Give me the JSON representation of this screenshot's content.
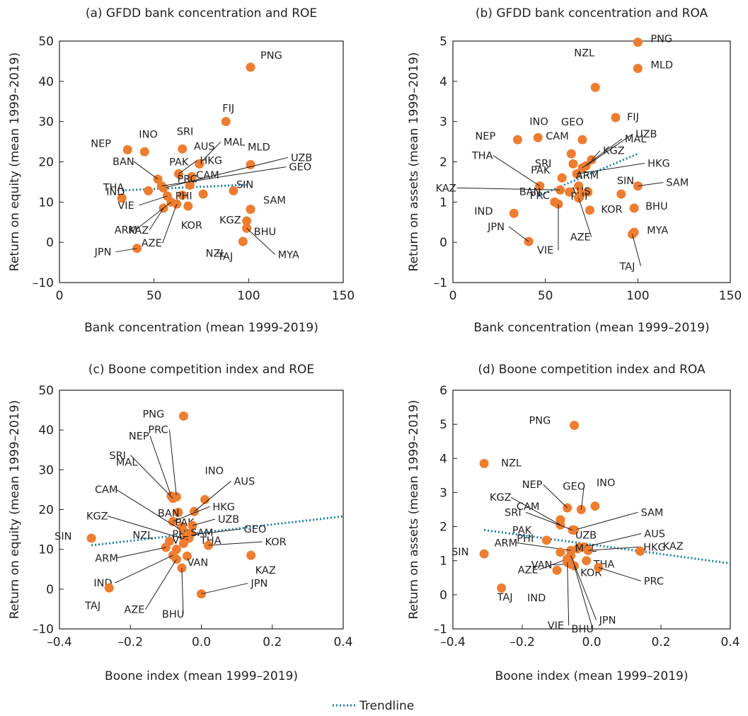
{
  "legend": {
    "label": "Trendline",
    "color": "#1b7fa6"
  },
  "colors": {
    "point": "#ee7d30",
    "trend": "#1b7fa6",
    "text": "#231f20"
  },
  "chart_data": [
    {
      "type": "scatter",
      "title": "(a) GFDD bank concentration and ROE",
      "xlabel": "Bank concentration (mean 1999-2019)",
      "ylabel": "Return on equity (mean 1999–2019)",
      "xlim": [
        0,
        150
      ],
      "ylim": [
        -10,
        50
      ],
      "xticks": [
        0,
        50,
        100,
        150
      ],
      "yticks": [
        -10,
        0,
        10,
        20,
        30,
        40,
        50
      ],
      "xtick_labels": [
        "0",
        "50",
        "100",
        "150"
      ],
      "ytick_labels": [
        "–10",
        "0",
        "10",
        "20",
        "30",
        "40",
        "50"
      ],
      "trendline": {
        "x": [
          33,
          99
        ],
        "y": [
          12.9,
          14.3
        ]
      },
      "points": [
        {
          "label": "PNG",
          "x": 101,
          "y": 43.5
        },
        {
          "label": "FIJ",
          "x": 88,
          "y": 30
        },
        {
          "label": "SRI",
          "x": 65,
          "y": 23.2
        },
        {
          "label": "INO",
          "x": 45,
          "y": 22.5
        },
        {
          "label": "NEP",
          "x": 36,
          "y": 23
        },
        {
          "label": "MAL",
          "x": 74,
          "y": 19.5
        },
        {
          "label": "AUS",
          "x": 74,
          "y": 19.5
        },
        {
          "label": "MLD",
          "x": 101,
          "y": 19.3
        },
        {
          "label": "HKG",
          "x": 63,
          "y": 17
        },
        {
          "label": "BAN",
          "x": 52,
          "y": 15.7
        },
        {
          "label": "PAK",
          "x": 70,
          "y": 16.3
        },
        {
          "label": "PRC",
          "x": 69,
          "y": 14.2
        },
        {
          "label": "UZB",
          "x": 55,
          "y": 13.5
        },
        {
          "label": "GEO",
          "x": 54,
          "y": 14
        },
        {
          "label": "THA",
          "x": 47,
          "y": 12.8
        },
        {
          "label": "SIN",
          "x": 92,
          "y": 12.8
        },
        {
          "label": "IND",
          "x": 33,
          "y": 11
        },
        {
          "label": "VIE",
          "x": 57,
          "y": 11.5
        },
        {
          "label": "CAM",
          "x": 76,
          "y": 12
        },
        {
          "label": "PHI",
          "x": 65,
          "y": 11.7
        },
        {
          "label": "KGZ",
          "x": 101,
          "y": 8.2
        },
        {
          "label": "SAM",
          "x": 101,
          "y": 8.2
        },
        {
          "label": "KAZ",
          "x": 55,
          "y": 8.5
        },
        {
          "label": "KOR",
          "x": 68,
          "y": 9
        },
        {
          "label": "ARM",
          "x": 59,
          "y": 10
        },
        {
          "label": "BHU",
          "x": 99,
          "y": 5.3
        },
        {
          "label": "NZL",
          "x": 99,
          "y": 3.5
        },
        {
          "label": "AZE",
          "x": 62,
          "y": 9.5
        },
        {
          "label": "MYA",
          "x": 99,
          "y": 3.5
        },
        {
          "label": "TAJ",
          "x": 97,
          "y": 0.2
        },
        {
          "label": "JPN",
          "x": 41,
          "y": -1.5
        }
      ]
    },
    {
      "type": "scatter",
      "title": "(b) GFDD bank concentration  and ROA",
      "xlabel": "Bank concentration (mean 1999–2019)",
      "ylabel": "Return on assets (mean 1999–2019)",
      "xlim": [
        0,
        150
      ],
      "ylim": [
        -1,
        5
      ],
      "xticks": [
        0,
        50,
        100,
        150
      ],
      "yticks": [
        -1,
        0,
        1,
        2,
        3,
        4,
        5
      ],
      "xtick_labels": [
        "0",
        "50",
        "100",
        "150"
      ],
      "ytick_labels": [
        "–1",
        "0",
        "1",
        "2",
        "3",
        "4",
        "5"
      ],
      "trendline": {
        "x": [
          46,
          100
        ],
        "y": [
          1.15,
          2.2
        ]
      },
      "points": [
        {
          "label": "PNG",
          "x": 100,
          "y": 4.97
        },
        {
          "label": "MLD",
          "x": 100,
          "y": 4.32
        },
        {
          "label": "NZL",
          "x": 77,
          "y": 3.85
        },
        {
          "label": "FIJ",
          "x": 88,
          "y": 3.1
        },
        {
          "label": "GEO",
          "x": 70,
          "y": 2.55
        },
        {
          "label": "INO",
          "x": 46,
          "y": 2.6
        },
        {
          "label": "NEP",
          "x": 35,
          "y": 2.55
        },
        {
          "label": "CAM",
          "x": 64,
          "y": 2.2
        },
        {
          "label": "KGZ",
          "x": 75,
          "y": 2.05
        },
        {
          "label": "UZB",
          "x": 72,
          "y": 1.9
        },
        {
          "label": "SRI",
          "x": 65,
          "y": 1.95
        },
        {
          "label": "MAL",
          "x": 70,
          "y": 1.85
        },
        {
          "label": "THA",
          "x": 47,
          "y": 1.4
        },
        {
          "label": "PAK",
          "x": 59,
          "y": 1.6
        },
        {
          "label": "HKG",
          "x": 67,
          "y": 1.7
        },
        {
          "label": "ARM",
          "x": 68,
          "y": 1.4
        },
        {
          "label": "SAM",
          "x": 100,
          "y": 1.4
        },
        {
          "label": "KAZ",
          "x": 58,
          "y": 1.3
        },
        {
          "label": "AUS",
          "x": 73,
          "y": 1.25
        },
        {
          "label": "SIN",
          "x": 91,
          "y": 1.2
        },
        {
          "label": "BAN",
          "x": 55,
          "y": 1.0
        },
        {
          "label": "PRC",
          "x": 63,
          "y": 1.25
        },
        {
          "label": "PHI",
          "x": 69,
          "y": 1.2
        },
        {
          "label": "KOR",
          "x": 74,
          "y": 0.8
        },
        {
          "label": "BHU",
          "x": 98,
          "y": 0.85
        },
        {
          "label": "IND",
          "x": 33,
          "y": 0.72
        },
        {
          "label": "VIE",
          "x": 57,
          "y": 0.95
        },
        {
          "label": "AZE",
          "x": 68,
          "y": 1.1
        },
        {
          "label": "MYA",
          "x": 98,
          "y": 0.25
        },
        {
          "label": "TAJ",
          "x": 97,
          "y": 0.2
        },
        {
          "label": "JPN",
          "x": 41,
          "y": 0.02
        }
      ]
    },
    {
      "type": "scatter",
      "title": "(c) Boone competition index and ROE",
      "xlabel": "Boone index (mean 1999–2019)",
      "ylabel": "Return on equity (mean 1999–2019)",
      "xlim": [
        -0.4,
        0.4
      ],
      "ylim": [
        -10,
        50
      ],
      "xticks": [
        -0.4,
        -0.2,
        0,
        0.2,
        0.4
      ],
      "yticks": [
        -10,
        0,
        10,
        20,
        30,
        40,
        50
      ],
      "xtick_labels": [
        "–0.4",
        "–0.2",
        "0.0",
        "0.2",
        "0.4"
      ],
      "ytick_labels": [
        "–10",
        "0",
        "10",
        "20",
        "30",
        "40",
        "50"
      ],
      "trendline": {
        "x": [
          -0.31,
          0.4
        ],
        "y": [
          11.0,
          18.3
        ]
      },
      "points": [
        {
          "label": "PNG",
          "x": -0.05,
          "y": 43.5
        },
        {
          "label": "NEP",
          "x": -0.085,
          "y": 23.4
        },
        {
          "label": "PRC",
          "x": -0.07,
          "y": 23.2
        },
        {
          "label": "INO",
          "x": 0.01,
          "y": 22.5
        },
        {
          "label": "SRI",
          "x": -0.08,
          "y": 22.8
        },
        {
          "label": "MAL",
          "x": -0.065,
          "y": 19.3
        },
        {
          "label": "AUS",
          "x": -0.02,
          "y": 19.5
        },
        {
          "label": "HKG",
          "x": -0.08,
          "y": 17
        },
        {
          "label": "BAN",
          "x": -0.055,
          "y": 15.7
        },
        {
          "label": "CAM",
          "x": -0.045,
          "y": 14.2
        },
        {
          "label": "PAK",
          "x": -0.05,
          "y": 14.5
        },
        {
          "label": "PHI",
          "x": -0.03,
          "y": 14
        },
        {
          "label": "UZB",
          "x": -0.025,
          "y": 16
        },
        {
          "label": "GEO",
          "x": -0.04,
          "y": 13.5
        },
        {
          "label": "KGZ",
          "x": -0.045,
          "y": 12.5
        },
        {
          "label": "THA",
          "x": -0.035,
          "y": 12.8
        },
        {
          "label": "SIN",
          "x": -0.31,
          "y": 12.8
        },
        {
          "label": "NZL",
          "x": -0.09,
          "y": 12
        },
        {
          "label": "ARM",
          "x": -0.1,
          "y": 10.5
        },
        {
          "label": "VIE",
          "x": -0.07,
          "y": 10
        },
        {
          "label": "KOR",
          "x": 0.02,
          "y": 11
        },
        {
          "label": "SAM",
          "x": -0.05,
          "y": 11.5
        },
        {
          "label": "VAN",
          "x": -0.04,
          "y": 8.3
        },
        {
          "label": "KAZ",
          "x": 0.14,
          "y": 8.5
        },
        {
          "label": "IND",
          "x": -0.08,
          "y": 8.5
        },
        {
          "label": "BHU",
          "x": -0.055,
          "y": 5.3
        },
        {
          "label": "AZE",
          "x": -0.07,
          "y": 7.5
        },
        {
          "label": "TAJ",
          "x": -0.26,
          "y": 0.3
        },
        {
          "label": "JPN",
          "x": 0.0,
          "y": -1.2
        }
      ]
    },
    {
      "type": "scatter",
      "title": "(d) Boone competition index  and ROA",
      "xlabel": "Boone index (mean 1999–2019)",
      "ylabel": "Return on assets (mean 1999–2019)",
      "xlim": [
        -0.4,
        0.4
      ],
      "ylim": [
        -1,
        6
      ],
      "xticks": [
        -0.4,
        -0.2,
        0,
        0.2,
        0.4
      ],
      "yticks": [
        -1,
        0,
        1,
        2,
        3,
        4,
        5,
        6
      ],
      "xtick_labels": [
        "–0.4",
        "–0.2",
        "0.0",
        "0.2",
        "0.4"
      ],
      "ytick_labels": [
        "–1",
        "0",
        "1",
        "2",
        "3",
        "4",
        "5",
        "6"
      ],
      "trendline": {
        "x": [
          -0.31,
          0.4
        ],
        "y": [
          1.9,
          0.92
        ]
      },
      "points": [
        {
          "label": "PNG",
          "x": -0.05,
          "y": 4.97
        },
        {
          "label": "NZL",
          "x": -0.31,
          "y": 3.85
        },
        {
          "label": "GEO",
          "x": -0.03,
          "y": 2.5
        },
        {
          "label": "NEP",
          "x": -0.07,
          "y": 2.55
        },
        {
          "label": "INO",
          "x": 0.01,
          "y": 2.6
        },
        {
          "label": "CAM",
          "x": -0.09,
          "y": 2.2
        },
        {
          "label": "KGZ",
          "x": -0.09,
          "y": 2.05
        },
        {
          "label": "SAM",
          "x": -0.05,
          "y": 1.9
        },
        {
          "label": "UZB",
          "x": -0.035,
          "y": 1.4
        },
        {
          "label": "SRI",
          "x": -0.055,
          "y": 1.9
        },
        {
          "label": "AUS",
          "x": -0.02,
          "y": 1.4
        },
        {
          "label": "PHI",
          "x": -0.13,
          "y": 1.6
        },
        {
          "label": "MAL",
          "x": -0.04,
          "y": 1.35
        },
        {
          "label": "HKG",
          "x": -0.01,
          "y": 1.3
        },
        {
          "label": "ARM",
          "x": -0.06,
          "y": 1.3
        },
        {
          "label": "PAK",
          "x": -0.09,
          "y": 1.25
        },
        {
          "label": "KAZ",
          "x": 0.14,
          "y": 1.28
        },
        {
          "label": "SIN",
          "x": -0.31,
          "y": 1.2
        },
        {
          "label": "THA",
          "x": -0.015,
          "y": 1.0
        },
        {
          "label": "KOR",
          "x": -0.065,
          "y": 1.05
        },
        {
          "label": "PRC",
          "x": 0.02,
          "y": 0.8
        },
        {
          "label": "AZE",
          "x": -0.07,
          "y": 1.05
        },
        {
          "label": "VAN",
          "x": -0.06,
          "y": 0.9
        },
        {
          "label": "IND",
          "x": -0.1,
          "y": 0.72
        },
        {
          "label": "VIE",
          "x": -0.07,
          "y": 0.95
        },
        {
          "label": "BHU",
          "x": -0.05,
          "y": 0.85
        },
        {
          "label": "JPN",
          "x": -0.06,
          "y": 1.15
        },
        {
          "label": "TAJ",
          "x": -0.26,
          "y": 0.2
        }
      ]
    }
  ]
}
